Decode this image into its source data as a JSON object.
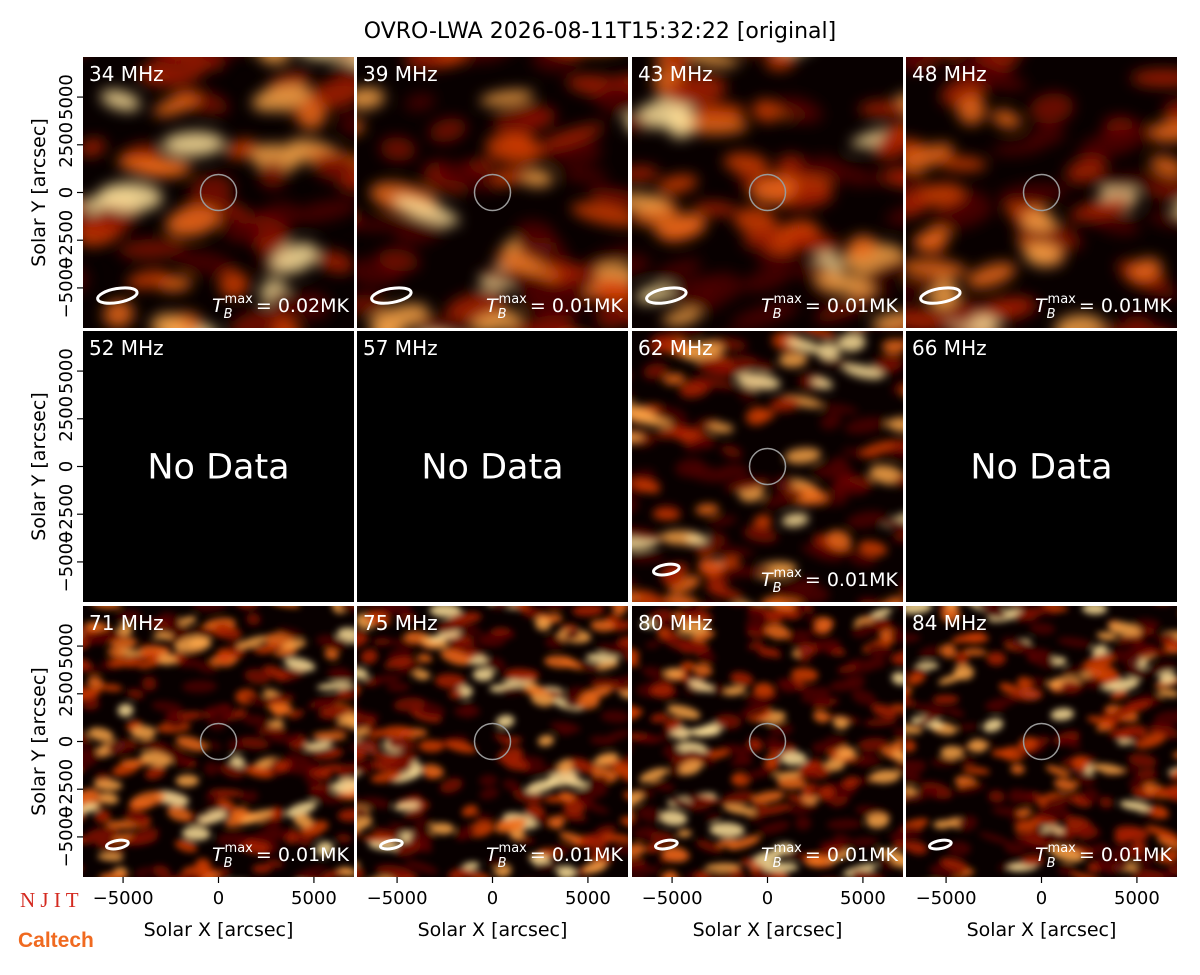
{
  "chart_data": {
    "type": "image_grid",
    "title": "OVRO-LWA 2026-08-11T15:32:22 [original]",
    "x_label": "Solar X [arcsec]",
    "y_label": "Solar Y [arcsec]",
    "xlim": [
      -7100,
      7100
    ],
    "ylim": [
      -7100,
      7100
    ],
    "xticks": [
      {
        "value": -5000,
        "label": "−5000"
      },
      0,
      5000
    ],
    "yticks": [
      {
        "value": -5000,
        "label": "−5000"
      },
      {
        "value": -2500,
        "label": "−2500"
      },
      0,
      2500,
      5000
    ],
    "no_data_text": "No Data",
    "tb": {
      "symbol": "T",
      "sub": "B",
      "sup": "max"
    },
    "panels": [
      {
        "freq": "34 MHz",
        "tmax": "= 0.02MK"
      },
      {
        "freq": "39 MHz",
        "tmax": "= 0.01MK"
      },
      {
        "freq": "43 MHz",
        "tmax": "= 0.01MK"
      },
      {
        "freq": "48 MHz",
        "tmax": "= 0.01MK"
      },
      {
        "freq": "52 MHz",
        "no_data": true
      },
      {
        "freq": "57 MHz",
        "no_data": true
      },
      {
        "freq": "62 MHz",
        "tmax": "= 0.01MK"
      },
      {
        "freq": "66 MHz",
        "no_data": true
      },
      {
        "freq": "71 MHz",
        "tmax": "= 0.01MK"
      },
      {
        "freq": "75 MHz",
        "tmax": "= 0.01MK"
      },
      {
        "freq": "80 MHz",
        "tmax": "= 0.01MK"
      },
      {
        "freq": "84 MHz",
        "tmax": "= 0.01MK"
      }
    ],
    "logos": [
      "N J I T",
      "Caltech"
    ]
  }
}
